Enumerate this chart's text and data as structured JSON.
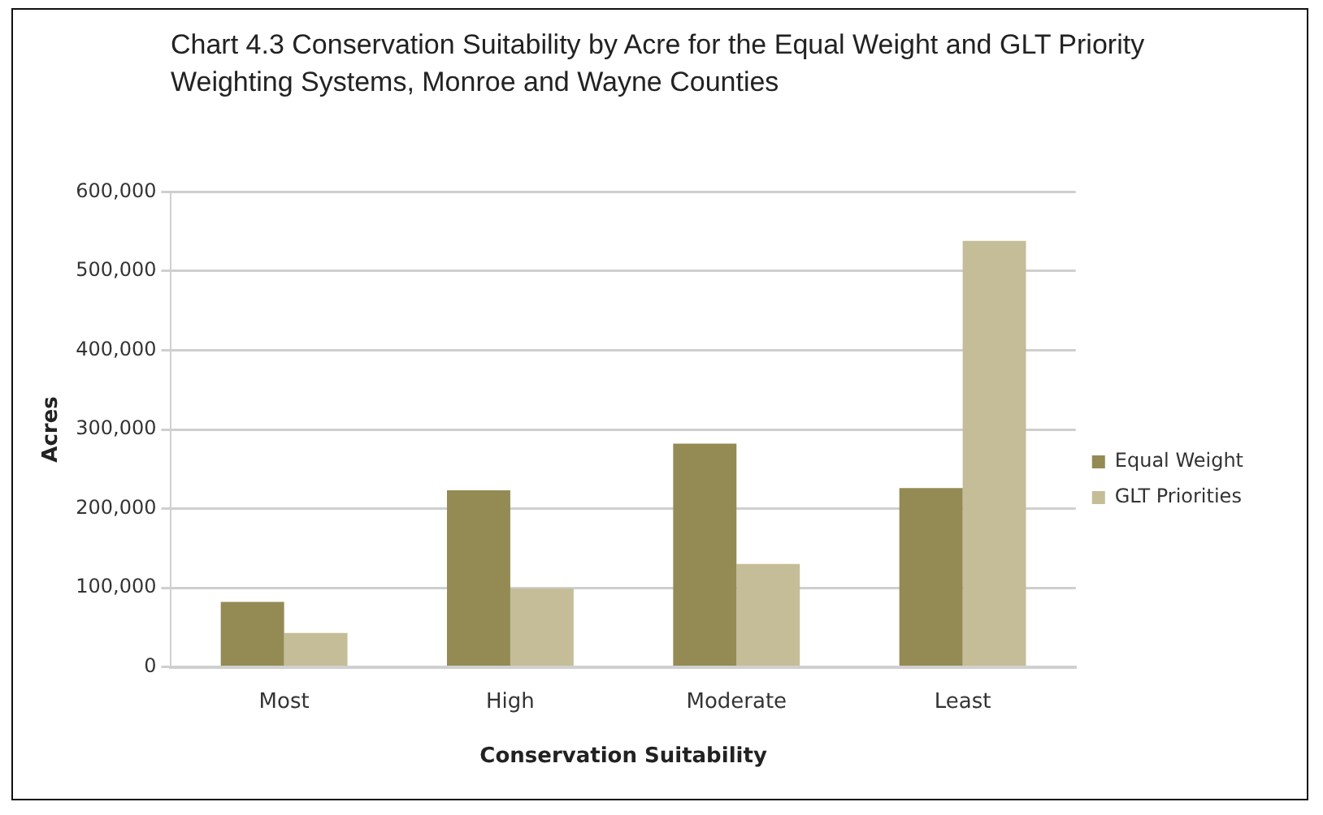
{
  "chart_data": {
    "type": "bar",
    "title": "Chart 4.3  Conservation Suitability by Acre for the Equal Weight and GLT Priority Weighting Systems, Monroe and Wayne Counties",
    "xlabel": "Conservation Suitability",
    "ylabel": "Acres",
    "categories": [
      "Most",
      "High",
      "Moderate",
      "Least"
    ],
    "series": [
      {
        "name": "Equal Weight",
        "color": "#948a54",
        "values": [
          82000,
          223000,
          282000,
          226000
        ]
      },
      {
        "name": "GLT Priorities",
        "color": "#c4bd97",
        "values": [
          43000,
          99000,
          130000,
          538000
        ]
      }
    ],
    "ylim": [
      0,
      600000
    ],
    "yticks": [
      {
        "value": 0,
        "label": "0"
      },
      {
        "value": 100000,
        "label": "100,000"
      },
      {
        "value": 200000,
        "label": "200,000"
      },
      {
        "value": 300000,
        "label": "300,000"
      },
      {
        "value": 400000,
        "label": "400,000"
      },
      {
        "value": 500000,
        "label": "500,000"
      },
      {
        "value": 600000,
        "label": "600,000"
      }
    ],
    "grid": "y",
    "legend": "right"
  }
}
